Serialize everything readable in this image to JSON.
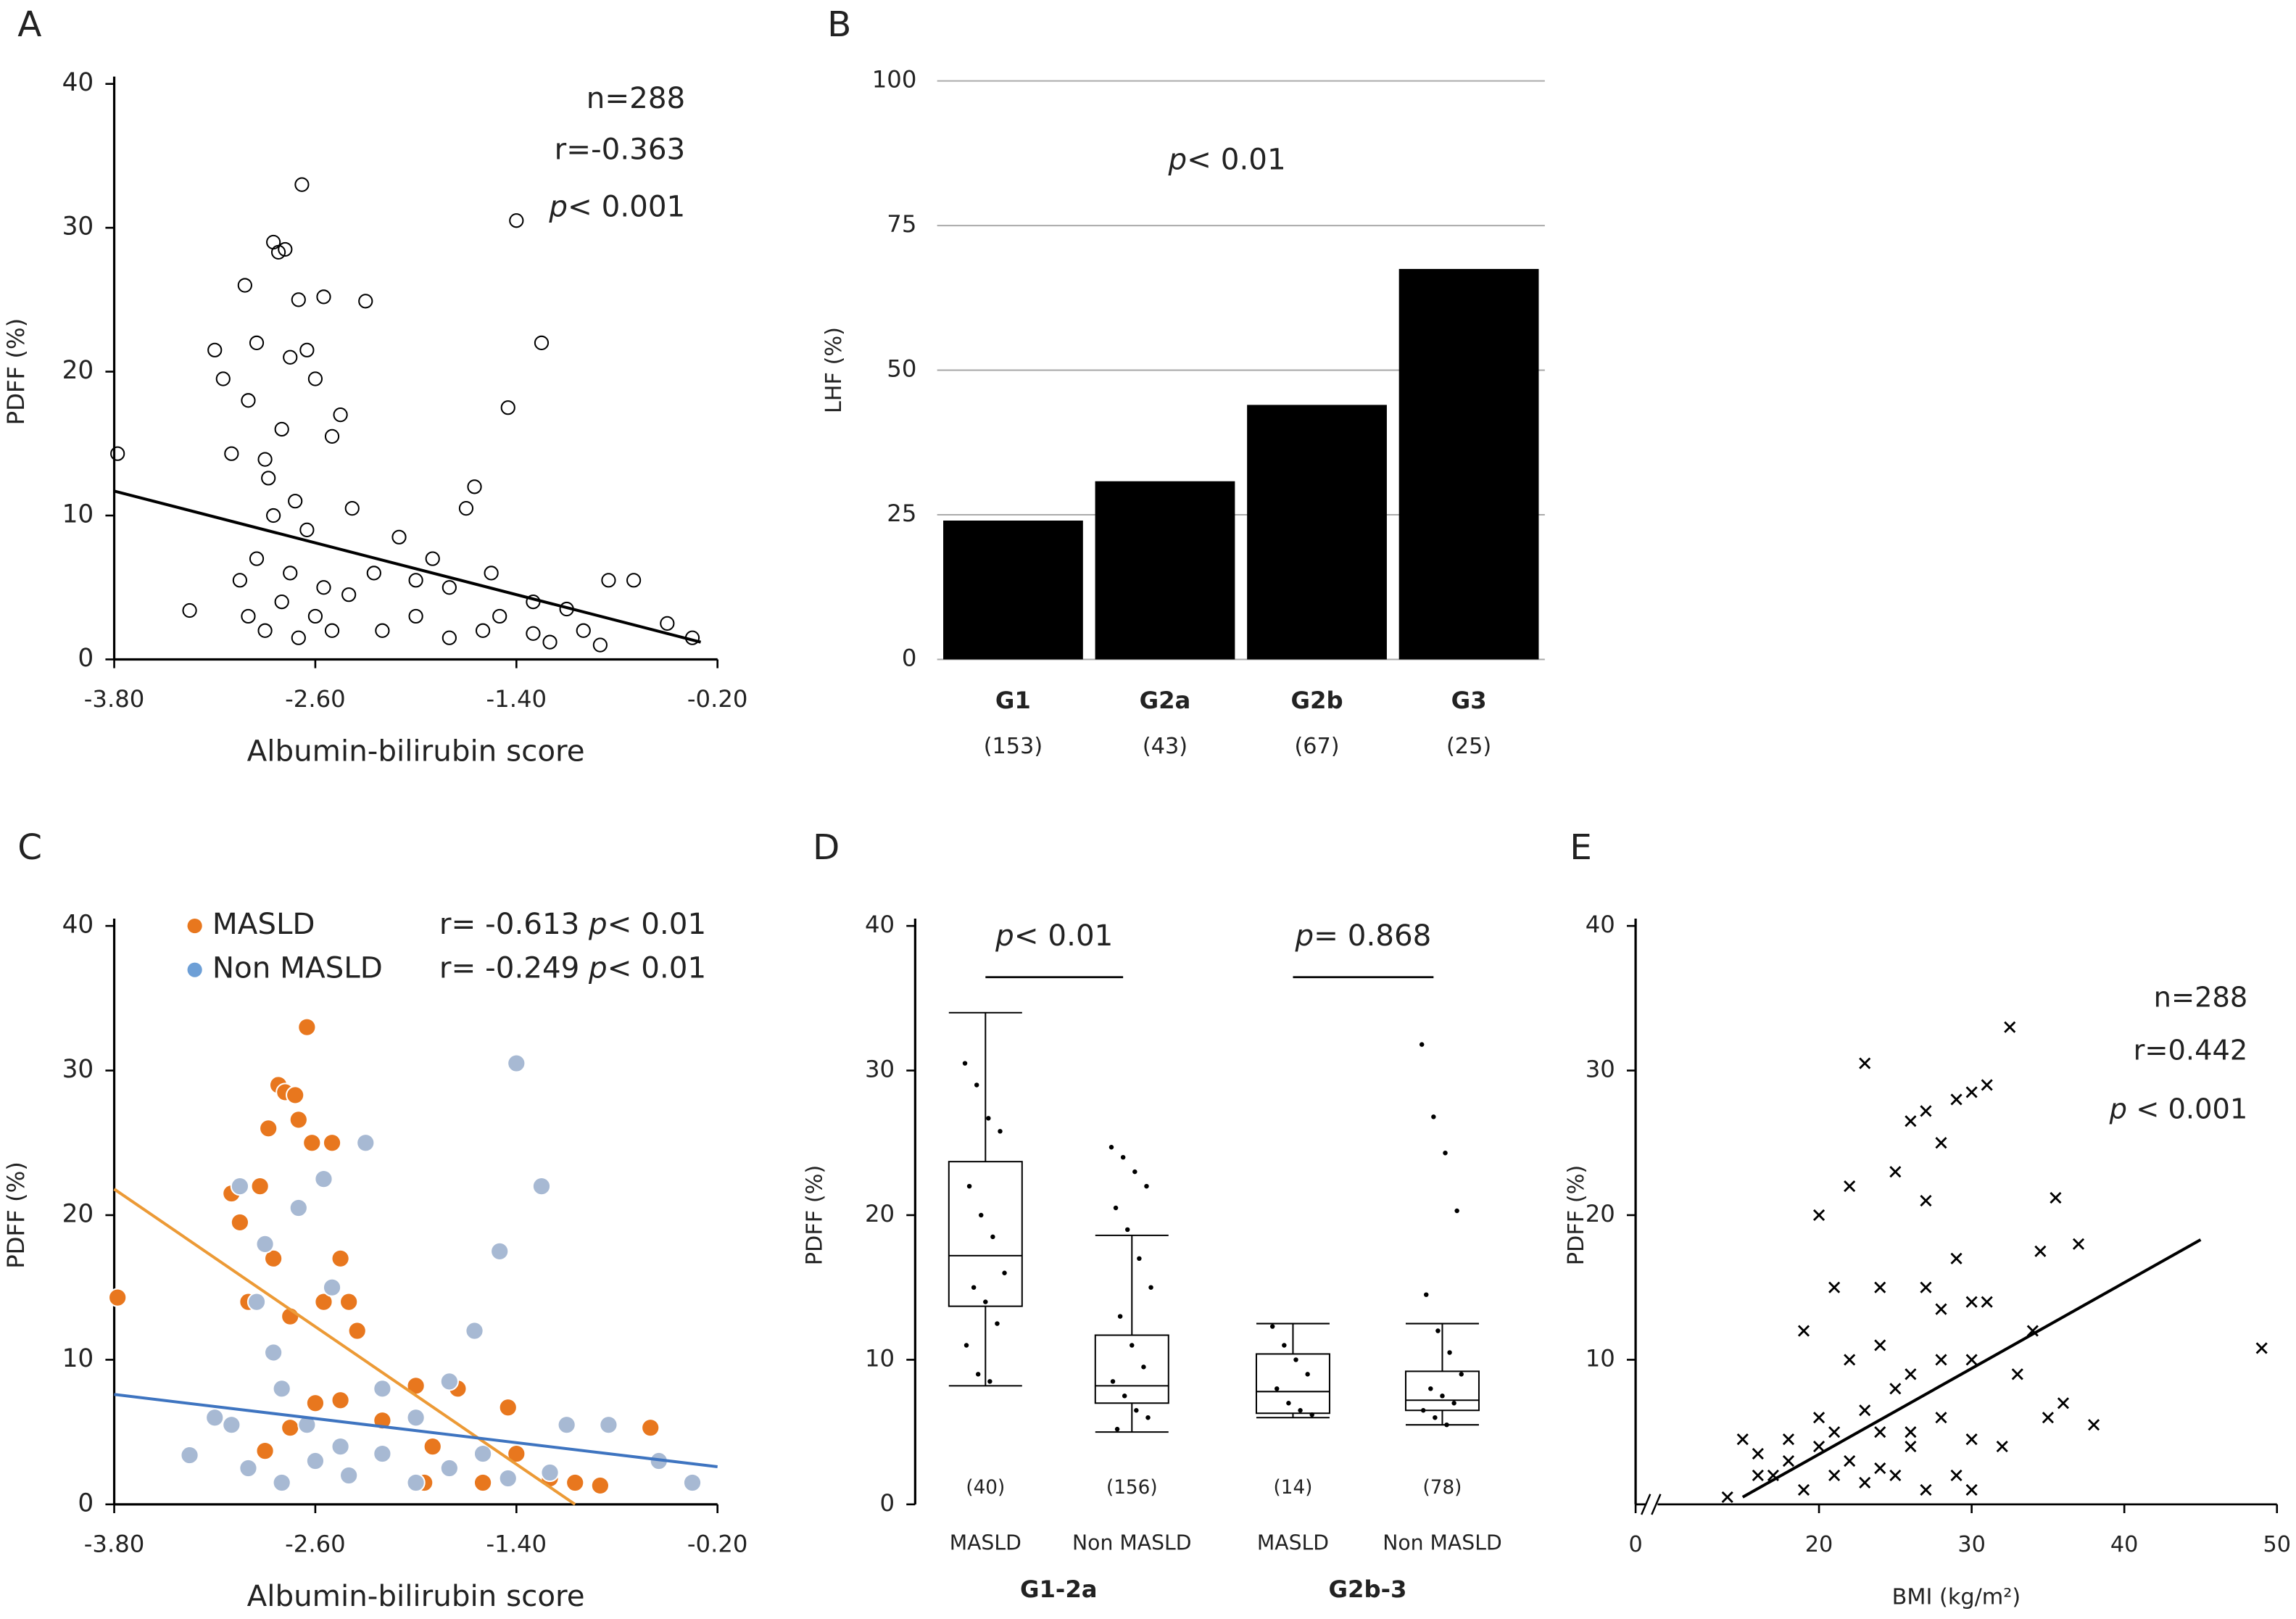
{
  "chart_data": [
    {
      "type": "scatter",
      "panel": "A",
      "xlabel": "Albumin-bilirubin score",
      "ylabel": "PDFF (%)",
      "annotations": [
        "n=288",
        "r=-0.363",
        "p< 0.001"
      ],
      "xlim": [
        -3.8,
        -0.2
      ],
      "ylim": [
        0,
        40
      ],
      "xticks": [
        {
          "value": -3.8,
          "label": "-3.80"
        },
        {
          "value": -2.6,
          "label": "-2.60"
        },
        {
          "value": -1.4,
          "label": "-1.40"
        },
        {
          "value": -0.2,
          "label": "-0.20"
        }
      ],
      "yticks": [
        0,
        10,
        20,
        30,
        40
      ],
      "marker": "open-circle",
      "color": "#000000",
      "x": [
        -3.78,
        -3.35,
        -3.2,
        -3.15,
        -3.1,
        -3.05,
        -3.02,
        -3.0,
        -2.95,
        -2.9,
        -2.88,
        -2.85,
        -2.82,
        -2.8,
        -2.78,
        -2.75,
        -2.72,
        -2.7,
        -2.68,
        -2.65,
        -2.6,
        -2.55,
        -2.5,
        -2.45,
        -2.38,
        -2.3,
        -2.25,
        -2.1,
        -2.0,
        -1.9,
        -1.8,
        -1.7,
        -1.65,
        -1.55,
        -1.45,
        -1.4,
        -1.3,
        -1.25,
        -1.1,
        -1.0,
        -0.85,
        -0.7,
        -0.5,
        -0.35,
        -3.0,
        -2.9,
        -2.8,
        -2.7,
        -2.6,
        -2.5,
        -2.4,
        -2.2,
        -2.0,
        -1.8,
        -1.6,
        -1.5,
        -1.3,
        -2.95,
        -2.75,
        -2.55,
        -2.65,
        -2.85,
        -1.2,
        -0.9
      ],
      "y": [
        14.3,
        3.4,
        21.5,
        19.5,
        14.3,
        5.5,
        26,
        18,
        22,
        13.9,
        12.6,
        29,
        28.3,
        16,
        28.5,
        21,
        11,
        25,
        33,
        21.5,
        19.5,
        25.2,
        15.5,
        17,
        10.5,
        24.9,
        6,
        8.5,
        5.5,
        7,
        5,
        10.5,
        12,
        6,
        17.5,
        30.5,
        4,
        22,
        3.5,
        2,
        5.5,
        5.5,
        2.5,
        1.5,
        3,
        2,
        4,
        1.5,
        3,
        2,
        4.5,
        2,
        3,
        1.5,
        2,
        3,
        1.8,
        7,
        6,
        5,
        9,
        10,
        1.2,
        1
      ],
      "fit": {
        "x": [
          -3.8,
          -0.3
        ],
        "y": [
          11.7,
          1.2
        ],
        "color": "#000000"
      }
    },
    {
      "type": "bar",
      "panel": "B",
      "ylabel": "LHF (%)",
      "annotations": [
        "p< 0.01"
      ],
      "categories": [
        "G1",
        "G2a",
        "G2b",
        "G3"
      ],
      "counts": [
        "(153)",
        "(43)",
        "(67)",
        "(25)"
      ],
      "values": [
        24,
        30.8,
        44,
        67.5
      ],
      "color": "#000000",
      "ylim": [
        0,
        100
      ],
      "yticks": [
        0,
        25,
        50,
        75,
        100
      ],
      "grid": true
    },
    {
      "type": "scatter",
      "panel": "C",
      "xlabel": "Albumin-bilirubin score",
      "ylabel": "PDFF (%)",
      "xlim": [
        -3.8,
        -0.2
      ],
      "ylim": [
        0,
        40
      ],
      "xticks": [
        {
          "value": -3.8,
          "label": "-3.80"
        },
        {
          "value": -2.6,
          "label": "-2.60"
        },
        {
          "value": -1.4,
          "label": "-1.40"
        },
        {
          "value": -0.2,
          "label": "-0.20"
        }
      ],
      "yticks": [
        0,
        10,
        20,
        30,
        40
      ],
      "series": [
        {
          "name": "MASLD",
          "color": "#e8771e",
          "stats": [
            "r= -0.613",
            "p< 0.01"
          ],
          "x": [
            -3.78,
            -3.1,
            -3.05,
            -3.0,
            -2.93,
            -2.88,
            -2.82,
            -2.78,
            -2.72,
            -2.7,
            -2.65,
            -2.62,
            -2.5,
            -2.45,
            -2.4,
            -2.55,
            -2.75,
            -2.85,
            -2.6,
            -2.45,
            -2.35,
            -2.2,
            -2.0,
            -1.9,
            -1.75,
            -1.6,
            -1.45,
            -1.4,
            -1.2,
            -1.05,
            -0.9,
            -0.6,
            -2.9,
            -2.75,
            -1.95
          ],
          "y": [
            14.3,
            21.5,
            19.5,
            14,
            22,
            26,
            29,
            28.5,
            28.3,
            26.6,
            33,
            25,
            25,
            17,
            14,
            14,
            13,
            17,
            7,
            7.2,
            12,
            5.8,
            8.2,
            4,
            8,
            1.5,
            6.7,
            3.5,
            1.8,
            1.5,
            1.3,
            5.3,
            3.7,
            5.3,
            1.5
          ],
          "fit": {
            "x": [
              -3.8,
              -1.05
            ],
            "y": [
              21.8,
              0
            ],
            "color": "#ec9a36"
          }
        },
        {
          "name": "Non MASLD",
          "color": "#a7b9d3",
          "stats": [
            "r= -0.249",
            "p< 0.01"
          ],
          "x": [
            -3.35,
            -3.1,
            -3.05,
            -2.95,
            -2.9,
            -2.8,
            -2.7,
            -2.55,
            -2.5,
            -2.3,
            -2.2,
            -2.0,
            -1.8,
            -1.65,
            -1.5,
            -1.4,
            -1.25,
            -1.1,
            -0.85,
            -0.55,
            -0.35,
            -3.0,
            -2.8,
            -2.6,
            -2.4,
            -2.2,
            -2.0,
            -1.8,
            -1.6,
            -1.45,
            -1.2,
            -2.65,
            -2.45,
            -3.2,
            -2.85
          ],
          "y": [
            3.4,
            5.5,
            22,
            14,
            18,
            8,
            20.5,
            22.5,
            15,
            25,
            8,
            6,
            8.5,
            12,
            17.5,
            30.5,
            22,
            5.5,
            5.5,
            3,
            1.5,
            2.5,
            1.5,
            3,
            2,
            3.5,
            1.5,
            2.5,
            3.5,
            1.8,
            2.2,
            5.5,
            4,
            6,
            10.5
          ],
          "fit": {
            "x": [
              -3.8,
              -0.2
            ],
            "y": [
              7.6,
              2.6
            ],
            "color": "#3e74c0"
          }
        }
      ]
    },
    {
      "type": "box",
      "panel": "D",
      "ylabel": "PDFF (%)",
      "ylim": [
        0,
        40
      ],
      "yticks": [
        0,
        10,
        20,
        30,
        40
      ],
      "categories": [
        "MASLD",
        "Non MASLD",
        "MASLD",
        "Non MASLD"
      ],
      "category_colors": [
        "#e8862a",
        "#7f96c2",
        "#e8862a",
        "#7f96c2"
      ],
      "counts": [
        "(40)",
        "(156)",
        "(14)",
        "(78)"
      ],
      "groups": [
        "G1-2a",
        "G2b-3"
      ],
      "comparisons": [
        "p< 0.01",
        "p= 0.868"
      ],
      "boxes": [
        {
          "min": 8.2,
          "q1": 13.7,
          "median": 17.2,
          "q3": 23.7,
          "max": 34,
          "points": [
            30.5,
            29,
            26.7,
            25.8,
            22,
            20,
            18.5,
            16,
            15,
            14,
            12.5,
            11,
            9,
            8.5
          ]
        },
        {
          "min": 5,
          "q1": 7,
          "median": 8.2,
          "q3": 11.7,
          "max": 18.6,
          "points": [
            24.7,
            24,
            23,
            22,
            20.5,
            19,
            17,
            15,
            13,
            11,
            9.5,
            8.5,
            7.5,
            6.5,
            6,
            5.2
          ]
        },
        {
          "min": 6,
          "q1": 6.3,
          "median": 7.8,
          "q3": 10.4,
          "max": 12.5,
          "points": [
            12.3,
            11,
            10,
            9,
            8,
            7,
            6.5,
            6.2
          ]
        },
        {
          "min": 5.5,
          "q1": 6.5,
          "median": 7.2,
          "q3": 9.2,
          "max": 12.5,
          "points": [
            31.8,
            26.8,
            24.3,
            20.3,
            14.5,
            12,
            10.5,
            9,
            8,
            7.5,
            7,
            6.5,
            6,
            5.5
          ]
        }
      ]
    },
    {
      "type": "scatter",
      "panel": "E",
      "xlabel": "BMI (kg/m²)",
      "ylabel": "PDFF (%)",
      "annotations": [
        "n=288",
        "r=0.442",
        "p < 0.001"
      ],
      "xlim": [
        0,
        50
      ],
      "xbreak": [
        0,
        10
      ],
      "ylim": [
        0,
        40
      ],
      "xticks": [
        0,
        20,
        30,
        40,
        50
      ],
      "yticks": [
        10,
        20,
        30,
        40
      ],
      "marker": "cross",
      "color": "#000000",
      "x": [
        49,
        37,
        38,
        36,
        35,
        34.5,
        35.5,
        32.5,
        31,
        30,
        29,
        27,
        28,
        23,
        26,
        27,
        22,
        20,
        25,
        29,
        31,
        30,
        28,
        27,
        24,
        21,
        19,
        22,
        24,
        25,
        26,
        28,
        30,
        33,
        32,
        34,
        30,
        29,
        27,
        25,
        23,
        21,
        19,
        17,
        15,
        16,
        18,
        20,
        22,
        24,
        26,
        28,
        30,
        14,
        20,
        23,
        26,
        18,
        21,
        24,
        16
      ],
      "y": [
        10.8,
        18,
        5.5,
        7,
        6,
        17.5,
        21.2,
        33,
        29,
        28.5,
        28,
        27.2,
        25,
        30.5,
        26.5,
        21,
        22,
        20,
        23,
        17,
        14,
        14,
        13.5,
        15,
        15,
        15,
        12,
        10,
        11,
        8,
        9,
        10,
        10,
        9,
        4,
        12,
        4.5,
        2,
        1,
        2,
        1.5,
        2,
        1,
        2,
        4.5,
        2,
        3,
        4,
        3,
        5,
        4,
        6,
        1,
        0.5,
        6,
        6.5,
        5,
        4.5,
        5,
        2.5,
        3.5
      ],
      "fit": {
        "x": [
          15,
          45
        ],
        "y": [
          0.5,
          18.3
        ],
        "color": "#000000"
      }
    }
  ]
}
